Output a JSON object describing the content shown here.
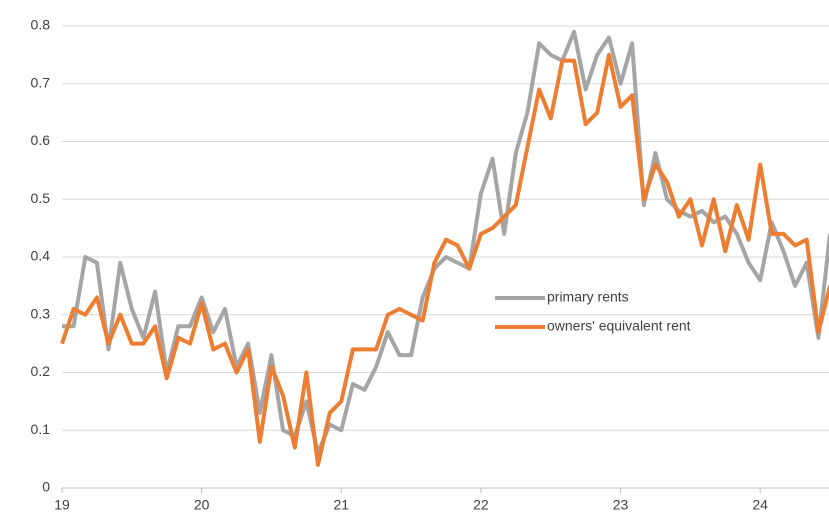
{
  "chart_data": {
    "type": "line",
    "x": [
      19,
      19.083,
      19.167,
      19.25,
      19.333,
      19.417,
      19.5,
      19.583,
      19.667,
      19.75,
      19.833,
      19.917,
      20,
      20.083,
      20.167,
      20.25,
      20.333,
      20.417,
      20.5,
      20.583,
      20.667,
      20.75,
      20.833,
      20.917,
      21,
      21.083,
      21.167,
      21.25,
      21.333,
      21.417,
      21.5,
      21.583,
      21.667,
      21.75,
      21.833,
      21.917,
      22,
      22.083,
      22.167,
      22.25,
      22.333,
      22.417,
      22.5,
      22.583,
      22.667,
      22.75,
      22.833,
      22.917,
      23,
      23.083,
      23.167,
      23.25,
      23.333,
      23.417,
      23.5,
      23.583,
      23.667,
      23.75,
      23.833,
      23.917,
      24,
      24.083,
      24.167,
      24.25,
      24.333,
      24.417,
      24.5
    ],
    "series": [
      {
        "name": "primary rents",
        "color": "#a5a5a5",
        "values": [
          0.28,
          0.28,
          0.4,
          0.39,
          0.24,
          0.39,
          0.31,
          0.26,
          0.34,
          0.2,
          0.28,
          0.28,
          0.33,
          0.27,
          0.31,
          0.21,
          0.25,
          0.13,
          0.23,
          0.1,
          0.09,
          0.15,
          0.06,
          0.11,
          0.1,
          0.18,
          0.17,
          0.21,
          0.27,
          0.23,
          0.23,
          0.33,
          0.38,
          0.4,
          0.39,
          0.38,
          0.51,
          0.57,
          0.44,
          0.58,
          0.65,
          0.77,
          0.75,
          0.74,
          0.79,
          0.69,
          0.75,
          0.78,
          0.7,
          0.77,
          0.49,
          0.58,
          0.5,
          0.48,
          0.47,
          0.48,
          0.46,
          0.47,
          0.44,
          0.39,
          0.36,
          0.46,
          0.41,
          0.35,
          0.39,
          0.26,
          0.44
        ]
      },
      {
        "name": "owners' equivalent rent",
        "color": "#ed7d31",
        "values": [
          0.25,
          0.31,
          0.3,
          0.33,
          0.25,
          0.3,
          0.25,
          0.25,
          0.28,
          0.19,
          0.26,
          0.25,
          0.32,
          0.24,
          0.25,
          0.2,
          0.24,
          0.08,
          0.21,
          0.16,
          0.07,
          0.2,
          0.04,
          0.13,
          0.15,
          0.24,
          0.24,
          0.24,
          0.3,
          0.31,
          0.3,
          0.29,
          0.39,
          0.43,
          0.42,
          0.38,
          0.44,
          0.45,
          0.47,
          0.49,
          0.59,
          0.69,
          0.64,
          0.74,
          0.74,
          0.63,
          0.65,
          0.75,
          0.66,
          0.68,
          0.5,
          0.56,
          0.53,
          0.47,
          0.5,
          0.42,
          0.5,
          0.41,
          0.49,
          0.43,
          0.56,
          0.44,
          0.44,
          0.42,
          0.43,
          0.27,
          0.35
        ]
      }
    ],
    "xlim": [
      19,
      24.5
    ],
    "xticks": [
      19,
      20,
      21,
      22,
      23,
      24
    ],
    "ylim": [
      0,
      0.8
    ],
    "yticks": [
      0,
      0.1,
      0.2,
      0.3,
      0.4,
      0.5,
      0.6,
      0.7,
      0.8
    ],
    "grid": true,
    "legend": "center-right"
  }
}
